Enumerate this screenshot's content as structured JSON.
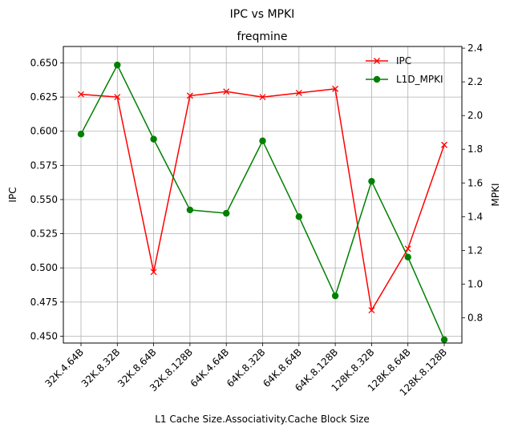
{
  "chart_data": {
    "type": "line",
    "suptitle": "IPC vs MPKI",
    "title": "freqmine",
    "xlabel": "L1 Cache Size.Associativity.Cache Block Size",
    "ylabel_left": "IPC",
    "ylabel_right": "MPKI",
    "categories": [
      "32K.4.64B",
      "32K.8.32B",
      "32K.8.64B",
      "32K.8.128B",
      "64K.4.64B",
      "64K.8.32B",
      "64K.8.64B",
      "64K.8.128B",
      "128K.8.32B",
      "128K.8.64B",
      "128K.8.128B"
    ],
    "ylim_left": [
      0.445,
      0.662
    ],
    "yticks_left": [
      "0.450",
      "0.475",
      "0.500",
      "0.525",
      "0.550",
      "0.575",
      "0.600",
      "0.625",
      "0.650"
    ],
    "ylim_right": [
      0.65,
      2.41
    ],
    "yticks_right": [
      "0.8",
      "1.0",
      "1.2",
      "1.4",
      "1.6",
      "1.8",
      "2.0",
      "2.2",
      "2.4"
    ],
    "grid": true,
    "legend_position": "top-right",
    "series": [
      {
        "name": "IPC",
        "axis": "left",
        "color": "#ff0000",
        "marker": "x",
        "values": [
          0.627,
          0.625,
          0.497,
          0.626,
          0.629,
          0.625,
          0.628,
          0.631,
          0.469,
          0.514,
          0.59
        ]
      },
      {
        "name": "L1D_MPKI",
        "axis": "right",
        "color": "#008000",
        "marker": "o",
        "values": [
          1.89,
          2.3,
          1.86,
          1.44,
          1.42,
          1.85,
          1.4,
          0.93,
          1.61,
          1.16,
          0.67
        ]
      }
    ]
  }
}
